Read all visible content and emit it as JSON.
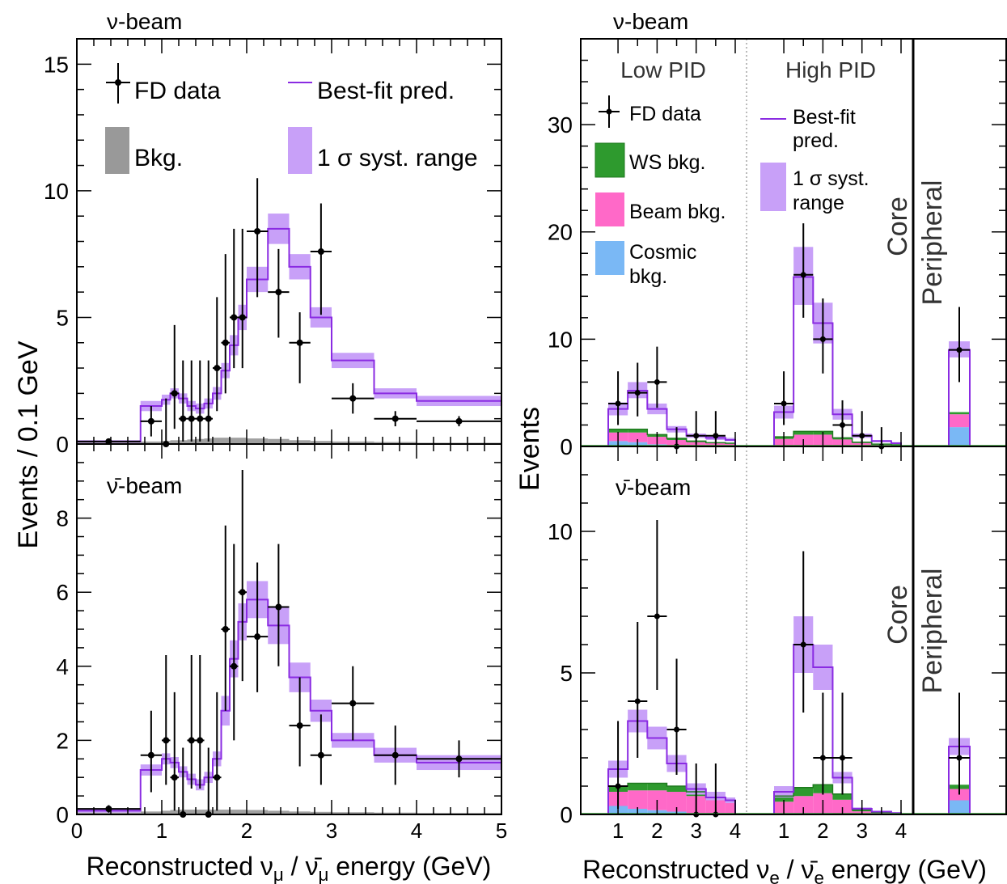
{
  "chart_data": [
    {
      "type": "histogram",
      "panel": "numu-beam",
      "beam_label": "ν-beam",
      "ylabel": "Events / 0.1 GeV",
      "xlabel_parts": [
        "Reconstructed ν",
        "μ",
        " / ν̄",
        "μ",
        " energy (GeV)"
      ],
      "xlim": [
        0,
        5
      ],
      "ylim": [
        0,
        16
      ],
      "y_ticks": [
        0,
        5,
        10,
        15
      ],
      "x_ticks": [
        0,
        1,
        2,
        3,
        4,
        5
      ],
      "legend": {
        "data": "FD data",
        "pred": "Best-fit pred.",
        "bkg": "Bkg.",
        "syst": "1 σ syst. range"
      },
      "edges": [
        0,
        0.75,
        1.0,
        1.1,
        1.2,
        1.3,
        1.4,
        1.5,
        1.6,
        1.7,
        1.8,
        1.9,
        2.0,
        2.25,
        2.5,
        2.75,
        3.0,
        3.5,
        4.0,
        5.0
      ],
      "pred": [
        0.1,
        1.5,
        1.75,
        2.0,
        1.8,
        1.5,
        1.4,
        1.6,
        2.0,
        2.9,
        3.9,
        5.0,
        6.5,
        8.5,
        7.0,
        5.0,
        3.3,
        2.0,
        1.7,
        1.3
      ],
      "band_lo": [
        0.05,
        1.3,
        1.55,
        1.8,
        1.6,
        1.3,
        1.2,
        1.4,
        1.75,
        2.6,
        3.5,
        4.5,
        6.0,
        7.9,
        6.5,
        4.6,
        3.0,
        1.8,
        1.5,
        1.1
      ],
      "band_hi": [
        0.15,
        1.7,
        1.95,
        2.2,
        2.0,
        1.7,
        1.6,
        1.8,
        2.25,
        3.2,
        4.3,
        5.5,
        7.0,
        9.1,
        7.5,
        5.4,
        3.6,
        2.2,
        1.9,
        1.5
      ],
      "bkg": [
        0.05,
        0.1,
        0.12,
        0.15,
        0.15,
        0.18,
        0.2,
        0.22,
        0.25,
        0.25,
        0.25,
        0.25,
        0.22,
        0.2,
        0.15,
        0.12,
        0.1,
        0.08,
        0.05,
        0.05
      ],
      "data": [
        {
          "x": 0.375,
          "xe": 0.375,
          "y": 0.1,
          "ylo": 0.1,
          "yhi": 0.1
        },
        {
          "x": 0.875,
          "xe": 0.125,
          "y": 0.9,
          "ylo": 0.6,
          "yhi": 0.6
        },
        {
          "x": 1.05,
          "xe": 0.05,
          "y": 0,
          "ylo": 0,
          "yhi": 1.8
        },
        {
          "x": 1.15,
          "xe": 0.05,
          "y": 2.0,
          "ylo": 1.4,
          "yhi": 2.7
        },
        {
          "x": 1.25,
          "xe": 0.05,
          "y": 1.0,
          "ylo": 0.9,
          "yhi": 2.3
        },
        {
          "x": 1.35,
          "xe": 0.05,
          "y": 1.0,
          "ylo": 0.9,
          "yhi": 2.3
        },
        {
          "x": 1.45,
          "xe": 0.05,
          "y": 1.0,
          "ylo": 0.9,
          "yhi": 2.3
        },
        {
          "x": 1.55,
          "xe": 0.05,
          "y": 1.0,
          "ylo": 0.9,
          "yhi": 2.3
        },
        {
          "x": 1.65,
          "xe": 0.05,
          "y": 3.0,
          "ylo": 1.7,
          "yhi": 2.8
        },
        {
          "x": 1.75,
          "xe": 0.05,
          "y": 4.0,
          "ylo": 2.0,
          "yhi": 3.5
        },
        {
          "x": 1.85,
          "xe": 0.05,
          "y": 5.0,
          "ylo": 2.0,
          "yhi": 3.5
        },
        {
          "x": 1.95,
          "xe": 0.05,
          "y": 5.0,
          "ylo": 2.0,
          "yhi": 3.5
        },
        {
          "x": 2.125,
          "xe": 0.125,
          "y": 8.4,
          "ylo": 2.6,
          "yhi": 2.1
        },
        {
          "x": 2.375,
          "xe": 0.125,
          "y": 6.0,
          "ylo": 1.8,
          "yhi": 1.7
        },
        {
          "x": 2.625,
          "xe": 0.125,
          "y": 4.0,
          "ylo": 1.6,
          "yhi": 1.2
        },
        {
          "x": 2.875,
          "xe": 0.125,
          "y": 7.6,
          "ylo": 2.5,
          "yhi": 1.9
        },
        {
          "x": 3.25,
          "xe": 0.25,
          "y": 1.8,
          "ylo": 0.6,
          "yhi": 0.6
        },
        {
          "x": 3.75,
          "xe": 0.25,
          "y": 1.0,
          "ylo": 0.3,
          "yhi": 0.3
        },
        {
          "x": 4.5,
          "xe": 0.5,
          "y": 0.9,
          "ylo": 0.2,
          "yhi": 0.2
        }
      ]
    },
    {
      "type": "histogram",
      "panel": "numubar-beam",
      "beam_label": "ν̄-beam",
      "xlim": [
        0,
        5
      ],
      "ylim": [
        0,
        10
      ],
      "y_ticks": [
        0,
        2,
        4,
        6,
        8
      ],
      "x_ticks": [
        0,
        1,
        2,
        3,
        4,
        5
      ],
      "x_tick_labels": [
        "0",
        "1",
        "2",
        "3",
        "4",
        "5"
      ],
      "edges": [
        0,
        0.75,
        1.0,
        1.1,
        1.2,
        1.3,
        1.4,
        1.5,
        1.6,
        1.7,
        1.8,
        1.9,
        2.0,
        2.25,
        2.5,
        2.75,
        3.0,
        3.5,
        4.0,
        5.0
      ],
      "pred": [
        0.1,
        1.2,
        1.5,
        1.4,
        1.15,
        0.95,
        0.8,
        1.0,
        1.5,
        2.8,
        4.2,
        5.2,
        5.8,
        5.1,
        3.7,
        2.8,
        2.0,
        1.6,
        1.4,
        1.4
      ],
      "band_lo": [
        0.05,
        1.05,
        1.35,
        1.25,
        1.0,
        0.8,
        0.65,
        0.85,
        1.3,
        2.4,
        3.7,
        4.7,
        5.3,
        4.6,
        3.3,
        2.5,
        1.8,
        1.4,
        1.2,
        1.2
      ],
      "band_hi": [
        0.15,
        1.35,
        1.65,
        1.55,
        1.3,
        1.1,
        0.95,
        1.15,
        1.7,
        3.2,
        4.7,
        5.7,
        6.3,
        5.6,
        4.1,
        3.1,
        2.2,
        1.8,
        1.6,
        1.6
      ],
      "bkg": [
        0.05,
        0.08,
        0.1,
        0.12,
        0.13,
        0.13,
        0.13,
        0.13,
        0.13,
        0.13,
        0.13,
        0.13,
        0.12,
        0.1,
        0.08,
        0.07,
        0.06,
        0.05,
        0.04,
        0.04
      ],
      "data": [
        {
          "x": 0.375,
          "xe": 0.375,
          "y": 0.15,
          "ylo": 0.1,
          "yhi": 0.1
        },
        {
          "x": 0.875,
          "xe": 0.125,
          "y": 1.6,
          "ylo": 1.0,
          "yhi": 1.2
        },
        {
          "x": 1.05,
          "xe": 0.05,
          "y": 2.0,
          "ylo": 1.2,
          "yhi": 2.3
        },
        {
          "x": 1.15,
          "xe": 0.05,
          "y": 1.0,
          "ylo": 0.9,
          "yhi": 2.3
        },
        {
          "x": 1.25,
          "xe": 0.05,
          "y": 0,
          "ylo": 0,
          "yhi": 1.8
        },
        {
          "x": 1.35,
          "xe": 0.05,
          "y": 2.0,
          "ylo": 1.3,
          "yhi": 2.3
        },
        {
          "x": 1.45,
          "xe": 0.05,
          "y": 2.0,
          "ylo": 1.3,
          "yhi": 2.3
        },
        {
          "x": 1.55,
          "xe": 0.05,
          "y": 0,
          "ylo": 0,
          "yhi": 1.8
        },
        {
          "x": 1.65,
          "xe": 0.05,
          "y": 1.0,
          "ylo": 0.9,
          "yhi": 2.3
        },
        {
          "x": 1.75,
          "xe": 0.05,
          "y": 5.0,
          "ylo": 2.2,
          "yhi": 2.8
        },
        {
          "x": 1.85,
          "xe": 0.05,
          "y": 4.0,
          "ylo": 2.0,
          "yhi": 3.3
        },
        {
          "x": 1.95,
          "xe": 0.05,
          "y": 6.0,
          "ylo": 2.4,
          "yhi": 3.3
        },
        {
          "x": 2.125,
          "xe": 0.125,
          "y": 4.8,
          "ylo": 1.5,
          "yhi": 2.0
        },
        {
          "x": 2.375,
          "xe": 0.125,
          "y": 5.6,
          "ylo": 1.6,
          "yhi": 1.7
        },
        {
          "x": 2.625,
          "xe": 0.125,
          "y": 2.4,
          "ylo": 1.1,
          "yhi": 1.3
        },
        {
          "x": 2.875,
          "xe": 0.125,
          "y": 1.6,
          "ylo": 0.8,
          "yhi": 1.1
        },
        {
          "x": 3.25,
          "xe": 0.25,
          "y": 3.0,
          "ylo": 1.0,
          "yhi": 1.0
        },
        {
          "x": 3.75,
          "xe": 0.25,
          "y": 1.6,
          "ylo": 0.8,
          "yhi": 0.8
        },
        {
          "x": 4.5,
          "xe": 0.5,
          "y": 1.5,
          "ylo": 0.5,
          "yhi": 0.5
        }
      ]
    },
    {
      "type": "stacked-histogram",
      "panel": "nue-beam",
      "beam_label": "ν-beam",
      "ylabel": "Events",
      "xlabel_parts": [
        "Reconstructed ν",
        "e",
        " / ν̄",
        "e",
        " energy (GeV)"
      ],
      "ylim": [
        0,
        38
      ],
      "y_ticks": [
        0,
        10,
        20,
        30
      ],
      "x_ticks": [
        1,
        2,
        3,
        4
      ],
      "bin_edges": [
        0.75,
        1.25,
        1.75,
        2.25,
        2.75,
        3.25,
        3.75,
        4.0
      ],
      "section_labels": {
        "low": "Low PID",
        "high": "High PID",
        "core": "Core",
        "peripheral": "Peripheral"
      },
      "legend": {
        "data": "FD data",
        "ws": "WS bkg.",
        "beam": "Beam bkg.",
        "cosmic_1": "Cosmic",
        "cosmic_2": "bkg.",
        "pred_1": "Best-fit",
        "pred_2": "pred.",
        "syst_1": "1 σ syst.",
        "syst_2": "range"
      },
      "colors": {
        "pred": "#8a2be2",
        "band": "#c8a0f8",
        "ws": "#2e9a2e",
        "beam": "#ff69c8",
        "cosmic": "#7ab8f5"
      },
      "low": {
        "pred": [
          3.5,
          5.2,
          3.5,
          1.6,
          1.0,
          0.8,
          0.6
        ],
        "band_lo": [
          2.9,
          4.5,
          3.0,
          1.3,
          0.8,
          0.6,
          0.5
        ],
        "band_hi": [
          4.1,
          6.0,
          4.0,
          1.9,
          1.2,
          1.0,
          0.8
        ],
        "cosmic": [
          0.5,
          0.4,
          0.2,
          0.1,
          0.05,
          0.05,
          0.05
        ],
        "beam": [
          0.8,
          0.9,
          0.7,
          0.5,
          0.35,
          0.25,
          0.2
        ],
        "ws": [
          0.3,
          0.3,
          0.2,
          0.15,
          0.1,
          0.05,
          0.05
        ],
        "data": [
          {
            "x": 1.0,
            "y": 4,
            "ylo": 2,
            "yhi": 3
          },
          {
            "x": 1.5,
            "y": 5,
            "ylo": 2.2,
            "yhi": 2.8
          },
          {
            "x": 2.0,
            "y": 6,
            "ylo": 2.4,
            "yhi": 3.3
          },
          {
            "x": 2.5,
            "y": 0,
            "ylo": 0,
            "yhi": 1.8
          },
          {
            "x": 3.0,
            "y": 1,
            "ylo": 0.8,
            "yhi": 2.3
          },
          {
            "x": 3.5,
            "y": 1,
            "ylo": 0.8,
            "yhi": 2.3
          }
        ]
      },
      "high": {
        "pred": [
          3.2,
          15.8,
          11.5,
          3.0,
          1.0,
          0.5,
          0.3
        ],
        "band_lo": [
          2.6,
          13.2,
          9.6,
          2.5,
          0.8,
          0.4,
          0.2
        ],
        "band_hi": [
          3.8,
          18.6,
          13.4,
          3.5,
          1.2,
          0.6,
          0.4
        ],
        "cosmic": [
          0.1,
          0.1,
          0.1,
          0.05,
          0.02,
          0.02,
          0.02
        ],
        "beam": [
          0.6,
          1.0,
          1.0,
          0.6,
          0.3,
          0.15,
          0.1
        ],
        "ws": [
          0.2,
          0.3,
          0.3,
          0.15,
          0.08,
          0.05,
          0.03
        ],
        "data": [
          {
            "x": 1.0,
            "y": 4,
            "ylo": 2,
            "yhi": 3
          },
          {
            "x": 1.5,
            "y": 16,
            "ylo": 4,
            "yhi": 4.8
          },
          {
            "x": 2.0,
            "y": 10,
            "ylo": 3.2,
            "yhi": 3.8
          },
          {
            "x": 2.5,
            "y": 2,
            "ylo": 1.3,
            "yhi": 2.3
          },
          {
            "x": 3.0,
            "y": 1,
            "ylo": 0.8,
            "yhi": 2.3
          },
          {
            "x": 3.5,
            "y": 0,
            "ylo": 0,
            "yhi": 1.8
          }
        ]
      },
      "peripheral": {
        "pred": 9.0,
        "band_lo": 8.3,
        "band_hi": 9.8,
        "cosmic": 1.8,
        "beam": 1.2,
        "ws": 0.2,
        "data": {
          "y": 9,
          "ylo": 3,
          "yhi": 4
        }
      }
    },
    {
      "type": "stacked-histogram",
      "panel": "nuebar-beam",
      "beam_label": "ν̄-beam",
      "ylim": [
        0,
        13
      ],
      "y_ticks": [
        0,
        5,
        10
      ],
      "x_ticks": [
        1,
        2,
        3,
        4
      ],
      "x_tick_labels": [
        "1",
        "2",
        "3",
        "4"
      ],
      "bin_edges": [
        0.75,
        1.25,
        1.75,
        2.25,
        2.75,
        3.25,
        3.75,
        4.0
      ],
      "section_labels": {
        "core": "Core",
        "peripheral": "Peripheral"
      },
      "low": {
        "pred": [
          1.6,
          3.3,
          2.7,
          1.8,
          0.9,
          0.6,
          0.5
        ],
        "band_lo": [
          1.3,
          2.9,
          2.3,
          1.5,
          0.7,
          0.5,
          0.4
        ],
        "band_hi": [
          1.9,
          3.7,
          3.1,
          2.1,
          1.1,
          0.8,
          0.6
        ],
        "cosmic": [
          0.3,
          0.2,
          0.15,
          0.1,
          0.05,
          0.05,
          0.05
        ],
        "beam": [
          0.5,
          0.65,
          0.7,
          0.7,
          0.6,
          0.45,
          0.4
        ],
        "ws": [
          0.2,
          0.25,
          0.25,
          0.2,
          0.15,
          0.1,
          0.05
        ],
        "data": [
          {
            "x": 1.0,
            "y": 1,
            "ylo": 0.8,
            "yhi": 2.3
          },
          {
            "x": 1.5,
            "y": 4,
            "ylo": 2,
            "yhi": 2.8
          },
          {
            "x": 2.0,
            "y": 7,
            "ylo": 2.6,
            "yhi": 3.4
          },
          {
            "x": 2.5,
            "y": 3,
            "ylo": 1.6,
            "yhi": 2.5
          },
          {
            "x": 3.0,
            "y": 0,
            "ylo": 0,
            "yhi": 1.8
          },
          {
            "x": 3.5,
            "y": 0,
            "ylo": 0,
            "yhi": 1.8
          }
        ]
      },
      "high": {
        "pred": [
          0.8,
          6.0,
          5.2,
          1.3,
          0.2,
          0.1,
          0.05
        ],
        "band_lo": [
          0.6,
          5.0,
          4.4,
          1.1,
          0.15,
          0.08,
          0.03
        ],
        "band_hi": [
          1.0,
          7.0,
          6.0,
          1.5,
          0.25,
          0.12,
          0.07
        ],
        "cosmic": [
          0.05,
          0.05,
          0.05,
          0.02,
          0.01,
          0.01,
          0.01
        ],
        "beam": [
          0.4,
          0.6,
          0.7,
          0.5,
          0.1,
          0.05,
          0.03
        ],
        "ws": [
          0.2,
          0.3,
          0.3,
          0.2,
          0.05,
          0.02,
          0.01
        ],
        "data": [
          {
            "x": 1.5,
            "y": 6,
            "ylo": 2.4,
            "yhi": 3.3
          },
          {
            "x": 2.0,
            "y": 2,
            "ylo": 1.3,
            "yhi": 2.3
          },
          {
            "x": 2.5,
            "y": 2,
            "ylo": 1.3,
            "yhi": 2.3
          }
        ]
      },
      "peripheral": {
        "pred": 2.4,
        "band_lo": 2.1,
        "band_hi": 2.7,
        "cosmic": 0.5,
        "beam": 0.4,
        "ws": 0.15,
        "data": {
          "y": 2,
          "ylo": 1.3,
          "yhi": 2.3
        }
      }
    }
  ]
}
